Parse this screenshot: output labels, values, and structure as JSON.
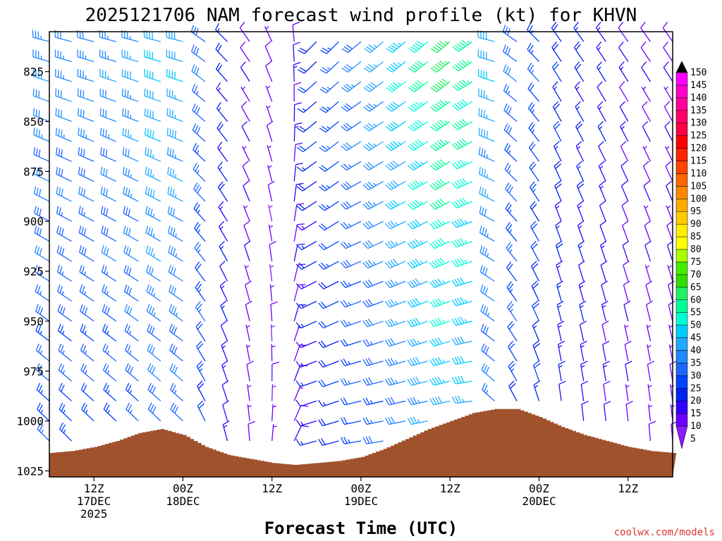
{
  "chart_data": {
    "type": "wind_barb_profile",
    "title": "2025121706 NAM forecast wind profile (kt) for KHVN",
    "xlabel": "Forecast Time (UTC)",
    "credit": "coolwx.com/models",
    "y_axis": {
      "ticks": [
        825,
        850,
        875,
        900,
        925,
        950,
        975,
        1000,
        1025
      ],
      "range": [
        805,
        1028
      ],
      "units": "hPa"
    },
    "x_axis": {
      "ticks": [
        {
          "hour": 6,
          "line1": "12Z",
          "line2": "17DEC",
          "line3": "2025"
        },
        {
          "hour": 18,
          "line1": "00Z",
          "line2": "18DEC",
          "line3": ""
        },
        {
          "hour": 30,
          "line1": "12Z",
          "line2": "",
          "line3": ""
        },
        {
          "hour": 42,
          "line1": "00Z",
          "line2": "19DEC",
          "line3": ""
        },
        {
          "hour": 54,
          "line1": "12Z",
          "line2": "",
          "line3": ""
        },
        {
          "hour": 66,
          "line1": "00Z",
          "line2": "20DEC",
          "line3": ""
        },
        {
          "hour": 78,
          "line1": "12Z",
          "line2": "",
          "line3": ""
        }
      ],
      "range": [
        0,
        84
      ]
    },
    "colorbar": {
      "levels": [
        5,
        10,
        15,
        20,
        25,
        30,
        35,
        40,
        45,
        50,
        55,
        60,
        65,
        70,
        75,
        80,
        85,
        90,
        95,
        100,
        105,
        110,
        115,
        120,
        125,
        130,
        135,
        140,
        145,
        150
      ],
      "colors": [
        "#8c1aff",
        "#6a00ff",
        "#3300ff",
        "#0022ee",
        "#0044ff",
        "#1e66ff",
        "#2288ff",
        "#22aaff",
        "#00ccff",
        "#00ffd5",
        "#00ff99",
        "#22ee66",
        "#33dd00",
        "#44ee00",
        "#aaff00",
        "#ffff00",
        "#ffee00",
        "#ffcc00",
        "#ffaa00",
        "#ff8800",
        "#ff6600",
        "#ff4400",
        "#ff2200",
        "#ff0000",
        "#ff0044",
        "#ff0066",
        "#ff0099",
        "#ff00cc",
        "#ff00ff",
        "#000000"
      ]
    },
    "terrain": {
      "color": "#a0522d",
      "surface_pressure": [
        {
          "hour": 0,
          "p": 1016
        },
        {
          "hour": 3,
          "p": 1015
        },
        {
          "hour": 6,
          "p": 1013
        },
        {
          "hour": 9,
          "p": 1010
        },
        {
          "hour": 12,
          "p": 1006
        },
        {
          "hour": 15,
          "p": 1004
        },
        {
          "hour": 18,
          "p": 1007
        },
        {
          "hour": 21,
          "p": 1013
        },
        {
          "hour": 24,
          "p": 1017
        },
        {
          "hour": 27,
          "p": 1019
        },
        {
          "hour": 30,
          "p": 1021
        },
        {
          "hour": 33,
          "p": 1022
        },
        {
          "hour": 36,
          "p": 1021
        },
        {
          "hour": 39,
          "p": 1020
        },
        {
          "hour": 42,
          "p": 1018
        },
        {
          "hour": 45,
          "p": 1014
        },
        {
          "hour": 48,
          "p": 1009
        },
        {
          "hour": 51,
          "p": 1004
        },
        {
          "hour": 54,
          "p": 1000
        },
        {
          "hour": 57,
          "p": 996
        },
        {
          "hour": 60,
          "p": 994
        },
        {
          "hour": 63,
          "p": 994
        },
        {
          "hour": 66,
          "p": 998
        },
        {
          "hour": 69,
          "p": 1003
        },
        {
          "hour": 72,
          "p": 1007
        },
        {
          "hour": 75,
          "p": 1010
        },
        {
          "hour": 78,
          "p": 1013
        },
        {
          "hour": 81,
          "p": 1015
        },
        {
          "hour": 84,
          "p": 1016
        }
      ]
    },
    "barb_levels_hpa": [
      810,
      820,
      830,
      840,
      850,
      860,
      870,
      880,
      890,
      900,
      910,
      920,
      930,
      940,
      950,
      960,
      970,
      980,
      990,
      1000,
      1010,
      1020
    ],
    "barb_hours": [
      0,
      3,
      6,
      9,
      12,
      15,
      18,
      21,
      24,
      27,
      30,
      33,
      36,
      39,
      42,
      45,
      48,
      51,
      54,
      57,
      60,
      63,
      66,
      69,
      72,
      75,
      78,
      81,
      84
    ],
    "wind_speed_kt_by_hour": [
      35,
      34,
      34,
      35,
      37,
      42,
      40,
      30,
      18,
      10,
      8,
      12,
      20,
      26,
      32,
      38,
      45,
      52,
      58,
      55,
      40,
      30,
      25,
      20,
      18,
      15,
      12,
      10,
      10
    ],
    "wind_dir_deg_by_hour": [
      300,
      300,
      300,
      300,
      300,
      300,
      300,
      320,
      330,
      340,
      350,
      10,
      240,
      240,
      245,
      245,
      245,
      245,
      245,
      250,
      300,
      320,
      330,
      340,
      340,
      340,
      340,
      340,
      340
    ]
  }
}
